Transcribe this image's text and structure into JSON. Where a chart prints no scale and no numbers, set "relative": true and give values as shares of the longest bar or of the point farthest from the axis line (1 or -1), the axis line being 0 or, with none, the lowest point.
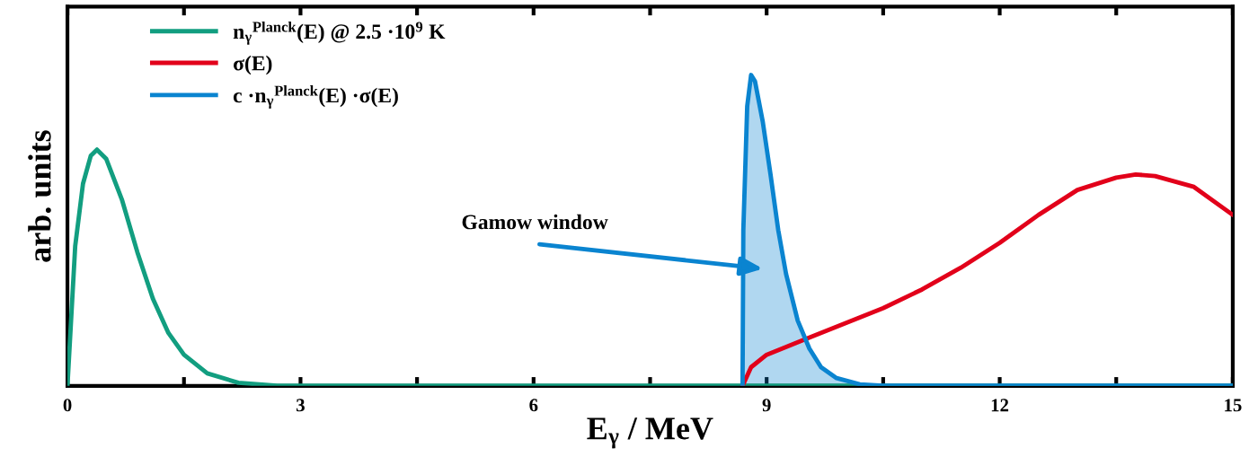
{
  "chart_data": {
    "type": "line",
    "relative": true,
    "xlabel": "E$_{γ}$ / MeV",
    "ylabel": "arb. units",
    "xlim": [
      0,
      15
    ],
    "xticks": [
      0,
      {
        "value": 1.5,
        "label": null
      },
      3,
      {
        "value": 4.5,
        "label": null
      },
      6,
      {
        "value": 7.5,
        "label": null
      },
      9,
      {
        "value": 10.5,
        "label": null
      },
      12,
      {
        "value": 13.5,
        "label": null
      },
      15
    ],
    "legend": "top left",
    "grid": false,
    "series": [
      {
        "name": "n$_{γ}$$^{Planck}$(E) @ 2.5 ·10$^{9}$ K",
        "color": "#129e80",
        "x": [
          0,
          0.1,
          0.2,
          0.3,
          0.38,
          0.5,
          0.7,
          0.9,
          1.1,
          1.3,
          1.5,
          1.8,
          2.2,
          2.7,
          15
        ],
        "values": [
          0,
          0.45,
          0.65,
          0.74,
          0.76,
          0.73,
          0.6,
          0.43,
          0.28,
          0.17,
          0.1,
          0.04,
          0.01,
          0,
          0
        ]
      },
      {
        "name": "σ(E)",
        "color": "#e2001a",
        "x": [
          8.69,
          8.8,
          9.0,
          9.5,
          10,
          10.5,
          11,
          11.5,
          12,
          12.5,
          13,
          13.5,
          13.75,
          14,
          14.5,
          15
        ],
        "values": [
          0,
          0.06,
          0.1,
          0.15,
          0.2,
          0.25,
          0.31,
          0.38,
          0.46,
          0.55,
          0.63,
          0.67,
          0.68,
          0.675,
          0.64,
          0.55
        ]
      },
      {
        "name": "c ·n$_{γ}$$^{Planck}$(E) ·σ(E)",
        "type": "area",
        "color": "#0a84d0",
        "x": [
          8.69,
          8.7,
          8.75,
          8.8,
          8.85,
          8.95,
          9.05,
          9.15,
          9.25,
          9.4,
          9.55,
          9.7,
          9.9,
          10.2,
          10.5,
          15
        ],
        "values": [
          0,
          0.5,
          0.9,
          1.0,
          0.98,
          0.85,
          0.68,
          0.5,
          0.36,
          0.21,
          0.12,
          0.06,
          0.025,
          0.005,
          0,
          0
        ]
      }
    ],
    "annotations": [
      "Gamow window"
    ]
  }
}
